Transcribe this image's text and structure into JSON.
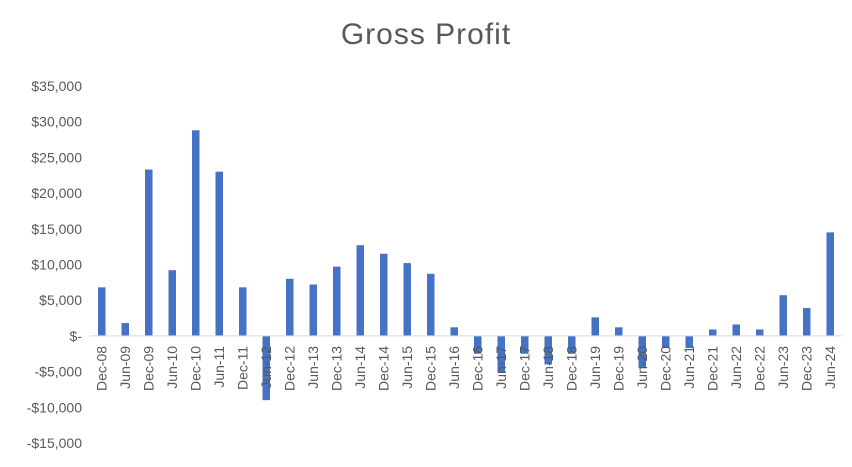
{
  "chart_data": {
    "type": "bar",
    "title": "Gross Profit",
    "xlabel": "",
    "ylabel": "",
    "ylim": [
      -15000,
      35000
    ],
    "yticks": [
      35000,
      30000,
      25000,
      20000,
      15000,
      10000,
      5000,
      0,
      -5000,
      -10000,
      -15000
    ],
    "ytick_labels": [
      "$35,000",
      "$30,000",
      "$25,000",
      "$20,000",
      "$15,000",
      "$10,000",
      "$5,000",
      "$-",
      "-$5,000",
      "-$10,000",
      "-$15,000"
    ],
    "grid": false,
    "legend": "none",
    "bar_color": "#4472C4",
    "categories": [
      "Dec-08",
      "Jun-09",
      "Dec-09",
      "Jun-10",
      "Dec-10",
      "Jun-11",
      "Dec-11",
      "Jun-12",
      "Dec-12",
      "Jun-13",
      "Dec-13",
      "Jun-14",
      "Dec-14",
      "Jun-15",
      "Dec-15",
      "Jun-16",
      "Dec-16",
      "Jun-17",
      "Dec-17",
      "Jun-18",
      "Dec-18",
      "Jun-19",
      "Dec-19",
      "Jun-20",
      "Dec-20",
      "Jun-21",
      "Dec-21",
      "Jun-22",
      "Dec-22",
      "Jun-23",
      "Dec-23",
      "Jun-24"
    ],
    "values": [
      6800,
      1800,
      23300,
      9200,
      28800,
      23000,
      6800,
      -9000,
      8000,
      7200,
      9700,
      12700,
      11500,
      10200,
      8700,
      1200,
      -2500,
      -5200,
      -2500,
      -4000,
      -2500,
      2600,
      1200,
      -4500,
      -1700,
      -1700,
      900,
      1600,
      900,
      5700,
      3900,
      14500
    ]
  }
}
